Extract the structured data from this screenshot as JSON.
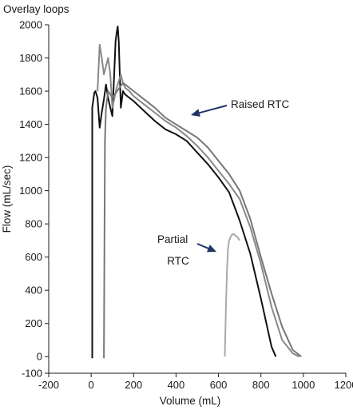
{
  "chart_data": {
    "type": "line",
    "title": "Overlay loops",
    "xlabel": "Volume (mL)",
    "ylabel": "Flow (mL/sec)",
    "xlim": [
      -200,
      1200
    ],
    "ylim": [
      -100,
      2000
    ],
    "xticks": [
      -200,
      0,
      200,
      400,
      600,
      800,
      1000,
      1200
    ],
    "yticks": [
      -100,
      0,
      200,
      400,
      600,
      800,
      1000,
      1200,
      1400,
      1600,
      1800,
      2000
    ],
    "grid": false,
    "annotations": [
      {
        "text": "Raised RTC",
        "arrow_to": [
          470,
          1400
        ]
      },
      {
        "text": "Partial RTC",
        "arrow_to": [
          630,
          460
        ]
      }
    ],
    "series": [
      {
        "color": "#111111",
        "x": [
          5,
          5,
          15,
          20,
          30,
          40,
          50,
          60,
          70,
          80,
          90,
          100,
          110,
          115,
          120,
          125,
          130,
          135,
          140,
          150,
          160,
          180,
          200,
          250,
          300,
          350,
          400,
          450,
          500,
          550,
          600,
          650,
          700,
          750,
          800,
          850,
          870
        ],
        "y": [
          -10,
          1500,
          1590,
          1600,
          1560,
          1380,
          1470,
          1550,
          1640,
          1560,
          1500,
          1450,
          1750,
          1900,
          1950,
          1990,
          1900,
          1700,
          1500,
          1600,
          1580,
          1560,
          1540,
          1480,
          1420,
          1370,
          1340,
          1300,
          1230,
          1160,
          1080,
          990,
          820,
          620,
          350,
          60,
          0
        ]
      },
      {
        "color": "#888888",
        "x": [
          30,
          40,
          50,
          60,
          70,
          80,
          90,
          100,
          110,
          120,
          130,
          140,
          150,
          160,
          180,
          200,
          250,
          300,
          350,
          400,
          450,
          500,
          550,
          600,
          650,
          700,
          750,
          800,
          850,
          900,
          950,
          980
        ],
        "y": [
          1600,
          1880,
          1800,
          1700,
          1750,
          1800,
          1700,
          1500,
          1560,
          1620,
          1660,
          1700,
          1650,
          1620,
          1600,
          1570,
          1520,
          1470,
          1420,
          1380,
          1330,
          1270,
          1200,
          1120,
          1040,
          950,
          780,
          560,
          300,
          100,
          20,
          0
        ]
      },
      {
        "color": "#777777",
        "x": [
          60,
          65,
          70,
          75,
          80,
          100,
          150,
          200,
          250,
          300,
          350,
          400,
          450,
          500,
          550,
          600,
          650,
          700,
          750,
          800,
          850,
          900,
          950,
          990
        ],
        "y": [
          -10,
          1300,
          1500,
          1550,
          1600,
          1560,
          1650,
          1600,
          1550,
          1500,
          1440,
          1400,
          1360,
          1320,
          1260,
          1180,
          1100,
          1000,
          830,
          600,
          380,
          180,
          40,
          0
        ]
      },
      {
        "color": "#aaaaaa",
        "x": [
          630,
          635,
          640,
          645,
          650,
          660,
          670,
          680,
          690,
          700
        ],
        "y": [
          0,
          300,
          520,
          650,
          700,
          730,
          740,
          730,
          720,
          700
        ]
      }
    ]
  }
}
